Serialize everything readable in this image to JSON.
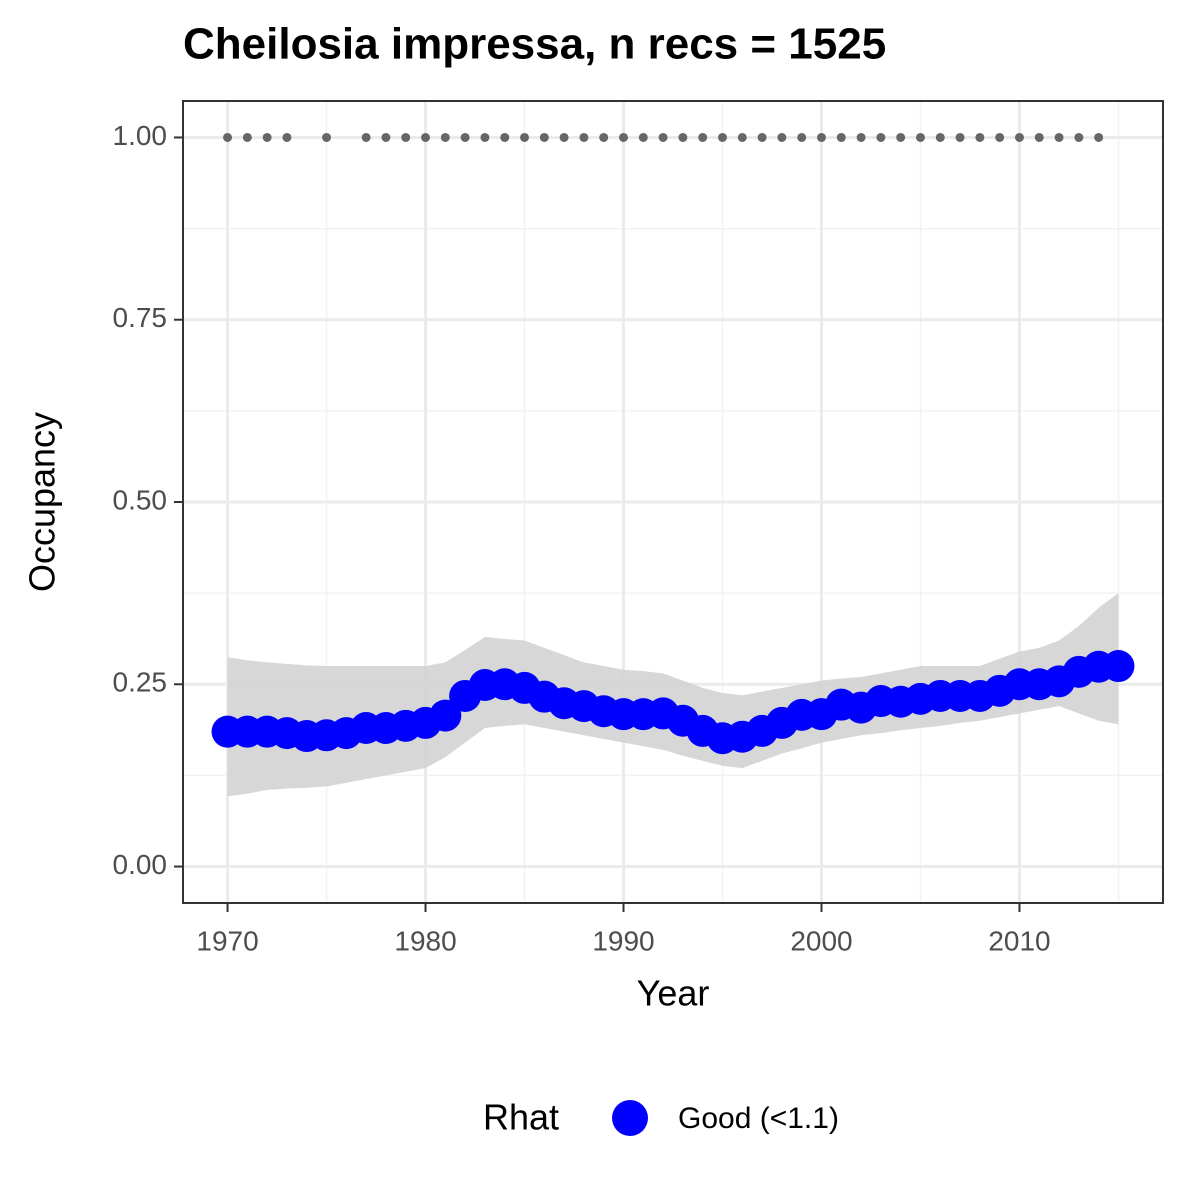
{
  "chart_data": {
    "type": "occupancy",
    "title": "Cheilosia impressa, n recs = 1525",
    "x_label": "Year",
    "y_label": "Occupancy",
    "x": [
      1970,
      1971,
      1972,
      1973,
      1974,
      1975,
      1976,
      1977,
      1978,
      1979,
      1980,
      1981,
      1982,
      1983,
      1984,
      1985,
      1986,
      1987,
      1988,
      1989,
      1990,
      1991,
      1992,
      1993,
      1994,
      1995,
      1996,
      1997,
      1998,
      1999,
      2000,
      2001,
      2002,
      2003,
      2004,
      2005,
      2006,
      2007,
      2008,
      2009,
      2010,
      2011,
      2012,
      2013,
      2014,
      2015
    ],
    "series": [
      {
        "name": "Good (<1.1)",
        "color": "#0000ff",
        "values": [
          0.185,
          0.185,
          0.185,
          0.183,
          0.179,
          0.18,
          0.183,
          0.19,
          0.19,
          0.193,
          0.197,
          0.207,
          0.234,
          0.249,
          0.25,
          0.245,
          0.233,
          0.224,
          0.22,
          0.213,
          0.209,
          0.209,
          0.21,
          0.2,
          0.186,
          0.176,
          0.178,
          0.186,
          0.197,
          0.208,
          0.209,
          0.222,
          0.218,
          0.227,
          0.226,
          0.23,
          0.234,
          0.234,
          0.234,
          0.241,
          0.25,
          0.25,
          0.254,
          0.267,
          0.274,
          0.275
        ]
      }
    ],
    "ribbon": {
      "color": "#d3d3d3",
      "lower": [
        0.096,
        0.1,
        0.105,
        0.107,
        0.108,
        0.11,
        0.115,
        0.12,
        0.125,
        0.13,
        0.135,
        0.15,
        0.17,
        0.19,
        0.193,
        0.195,
        0.19,
        0.185,
        0.18,
        0.175,
        0.17,
        0.165,
        0.16,
        0.152,
        0.145,
        0.138,
        0.135,
        0.145,
        0.155,
        0.162,
        0.17,
        0.175,
        0.18,
        0.183,
        0.187,
        0.19,
        0.193,
        0.197,
        0.2,
        0.205,
        0.21,
        0.215,
        0.22,
        0.21,
        0.2,
        0.195
      ],
      "upper": [
        0.287,
        0.283,
        0.28,
        0.278,
        0.276,
        0.275,
        0.275,
        0.275,
        0.275,
        0.275,
        0.275,
        0.28,
        0.297,
        0.315,
        0.312,
        0.31,
        0.3,
        0.29,
        0.28,
        0.275,
        0.27,
        0.268,
        0.265,
        0.255,
        0.245,
        0.238,
        0.235,
        0.24,
        0.245,
        0.25,
        0.255,
        0.258,
        0.26,
        0.265,
        0.27,
        0.275,
        0.275,
        0.275,
        0.275,
        0.285,
        0.295,
        0.3,
        0.31,
        0.33,
        0.355,
        0.375
      ]
    },
    "records": {
      "color": "#666666",
      "x": [
        1970,
        1971,
        1972,
        1973,
        1975,
        1977,
        1978,
        1979,
        1980,
        1981,
        1982,
        1983,
        1984,
        1985,
        1986,
        1987,
        1988,
        1989,
        1990,
        1991,
        1992,
        1993,
        1994,
        1995,
        1996,
        1997,
        1998,
        1999,
        2000,
        2001,
        2002,
        2003,
        2004,
        2005,
        2006,
        2007,
        2008,
        2009,
        2010,
        2011,
        2012,
        2013,
        2014
      ],
      "values": [
        1,
        1,
        1,
        1,
        1,
        1,
        1,
        1,
        1,
        1,
        1,
        1,
        1,
        1,
        1,
        1,
        1,
        1,
        1,
        1,
        1,
        1,
        1,
        1,
        1,
        1,
        1,
        1,
        1,
        1,
        1,
        1,
        1,
        1,
        1,
        1,
        1,
        1,
        1,
        1,
        1,
        1,
        1
      ]
    },
    "xlim": [
      1967.75,
      2017.25
    ],
    "xticks": [
      1970,
      1980,
      1990,
      2000,
      2010
    ],
    "ylim": [
      -0.05,
      1.05
    ],
    "yticks": [
      {
        "value": 0,
        "label": "0.00"
      },
      {
        "value": 0.25,
        "label": "0.25"
      },
      {
        "value": 0.5,
        "label": "0.50"
      },
      {
        "value": 0.75,
        "label": "0.75"
      },
      {
        "value": 1,
        "label": "1.00"
      }
    ],
    "grid": true,
    "legend": {
      "title": "Rhat",
      "position": "bottom"
    }
  }
}
